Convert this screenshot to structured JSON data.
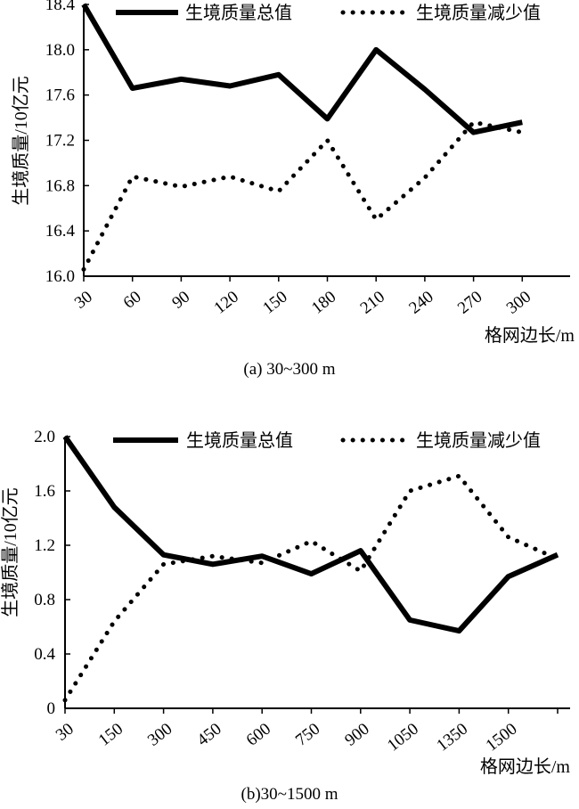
{
  "chart_data": [
    {
      "type": "line",
      "caption": "(a) 30~300 m",
      "xlabel": "格网边长/m",
      "ylabel": "生境质量/10亿元",
      "ylim": [
        16.0,
        18.4
      ],
      "yticks": [
        "16.0",
        "16.4",
        "16.8",
        "17.2",
        "17.6",
        "18.0",
        "18.4"
      ],
      "categories": [
        "30",
        "60",
        "90",
        "120",
        "150",
        "180",
        "210",
        "240",
        "270",
        "300"
      ],
      "legend_position": "top",
      "series": [
        {
          "name": "生境质量总值",
          "style": "solid",
          "values": [
            18.4,
            17.66,
            17.74,
            17.68,
            17.78,
            17.39,
            18.0,
            17.65,
            17.27,
            17.36
          ]
        },
        {
          "name": "生境质量减少值",
          "style": "dotted",
          "values": [
            16.06,
            16.88,
            16.79,
            16.88,
            16.75,
            17.2,
            16.5,
            16.87,
            17.36,
            17.27
          ]
        }
      ]
    },
    {
      "type": "line",
      "caption": "(b)30~1500 m",
      "xlabel": "格网边长/m",
      "ylabel": "生境质量/10亿元",
      "ylim": [
        0,
        2.0
      ],
      "yticks": [
        "0",
        "0.4",
        "0.8",
        "1.2",
        "1.6",
        "2.0"
      ],
      "categories": [
        "30",
        "150",
        "300",
        "450",
        "600",
        "750",
        "900",
        "1050",
        "1350",
        "1500",
        ""
      ],
      "legend_position": "top",
      "series": [
        {
          "name": "生境质量总值",
          "style": "solid",
          "values": [
            2.0,
            1.48,
            1.13,
            1.06,
            1.12,
            0.99,
            1.16,
            0.65,
            0.57,
            0.97,
            1.13
          ]
        },
        {
          "name": "生境质量减少值",
          "style": "dotted",
          "values": [
            0.06,
            0.64,
            1.06,
            1.12,
            1.07,
            1.23,
            1.01,
            1.6,
            1.71,
            1.26,
            1.1
          ]
        }
      ]
    }
  ]
}
